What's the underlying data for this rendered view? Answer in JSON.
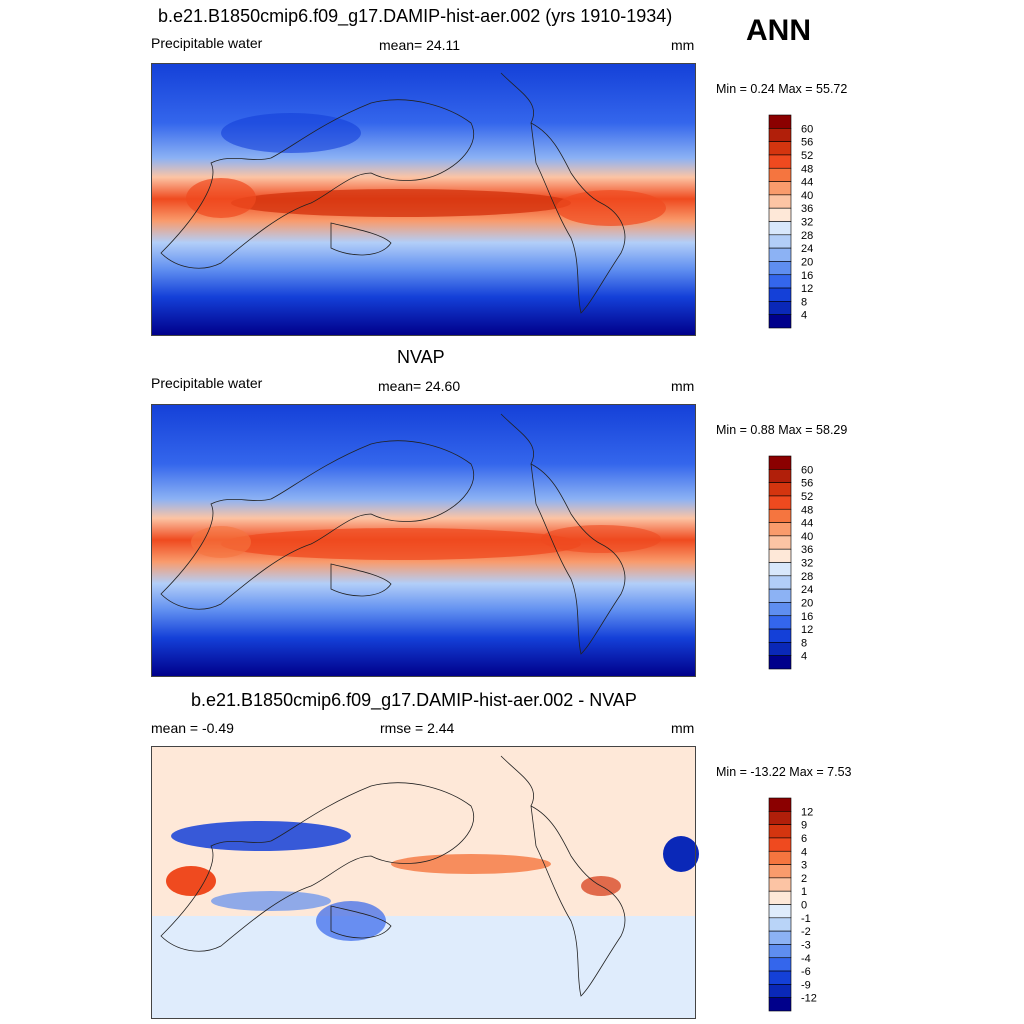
{
  "season": "ANN",
  "panels": [
    {
      "title": "b.e21.B1850cmip6.f09_g17.DAMIP-hist-aer.002 (yrs 1910-1934)",
      "left_label": "Precipitable water",
      "center_label": "mean=  24.11",
      "right_label": "mm",
      "minmax": "Min =   0.24 Max =  55.72",
      "colorbar": {
        "labels": [
          "60",
          "56",
          "52",
          "48",
          "44",
          "40",
          "36",
          "32",
          "28",
          "24",
          "20",
          "16",
          "12",
          "8",
          "4"
        ],
        "colors": [
          "#8b0000",
          "#b11f0a",
          "#d4350f",
          "#ef4a1f",
          "#f5753f",
          "#f99b6c",
          "#fcc4a4",
          "#fee8d8",
          "#d8e8fc",
          "#b2cef8",
          "#8cb2f4",
          "#5f8ef0",
          "#3466ec",
          "#1440d8",
          "#0a28b8",
          "#00008b"
        ]
      },
      "map_style": "positive"
    },
    {
      "title": "NVAP",
      "left_label": "Precipitable water",
      "center_label": "mean=  24.60",
      "right_label": "mm",
      "minmax": "Min =   0.88 Max =  58.29",
      "colorbar": {
        "labels": [
          "60",
          "56",
          "52",
          "48",
          "44",
          "40",
          "36",
          "32",
          "28",
          "24",
          "20",
          "16",
          "12",
          "8",
          "4"
        ],
        "colors": [
          "#8b0000",
          "#b11f0a",
          "#d4350f",
          "#ef4a1f",
          "#f5753f",
          "#f99b6c",
          "#fcc4a4",
          "#fee8d8",
          "#d8e8fc",
          "#b2cef8",
          "#8cb2f4",
          "#5f8ef0",
          "#3466ec",
          "#1440d8",
          "#0a28b8",
          "#00008b"
        ]
      },
      "map_style": "positive"
    },
    {
      "title": "b.e21.B1850cmip6.f09_g17.DAMIP-hist-aer.002 - NVAP",
      "left_label": "mean =  -0.49",
      "center_label": "rmse =   2.44",
      "right_label": "mm",
      "minmax": "Min = -13.22 Max =   7.53",
      "colorbar": {
        "labels": [
          "12",
          "9",
          "6",
          "4",
          "3",
          "2",
          "1",
          "0",
          "-1",
          "-2",
          "-3",
          "-4",
          "-6",
          "-9",
          "-12"
        ],
        "colors": [
          "#8b0000",
          "#b11f0a",
          "#d4350f",
          "#ef4a1f",
          "#f5753f",
          "#f99b6c",
          "#fcc4a4",
          "#fee8d8",
          "#dfecfc",
          "#b9d4f8",
          "#8cb2f4",
          "#5f8ef0",
          "#3466ec",
          "#1440d8",
          "#0a28b8",
          "#00008b"
        ]
      },
      "map_style": "difference"
    }
  ]
}
